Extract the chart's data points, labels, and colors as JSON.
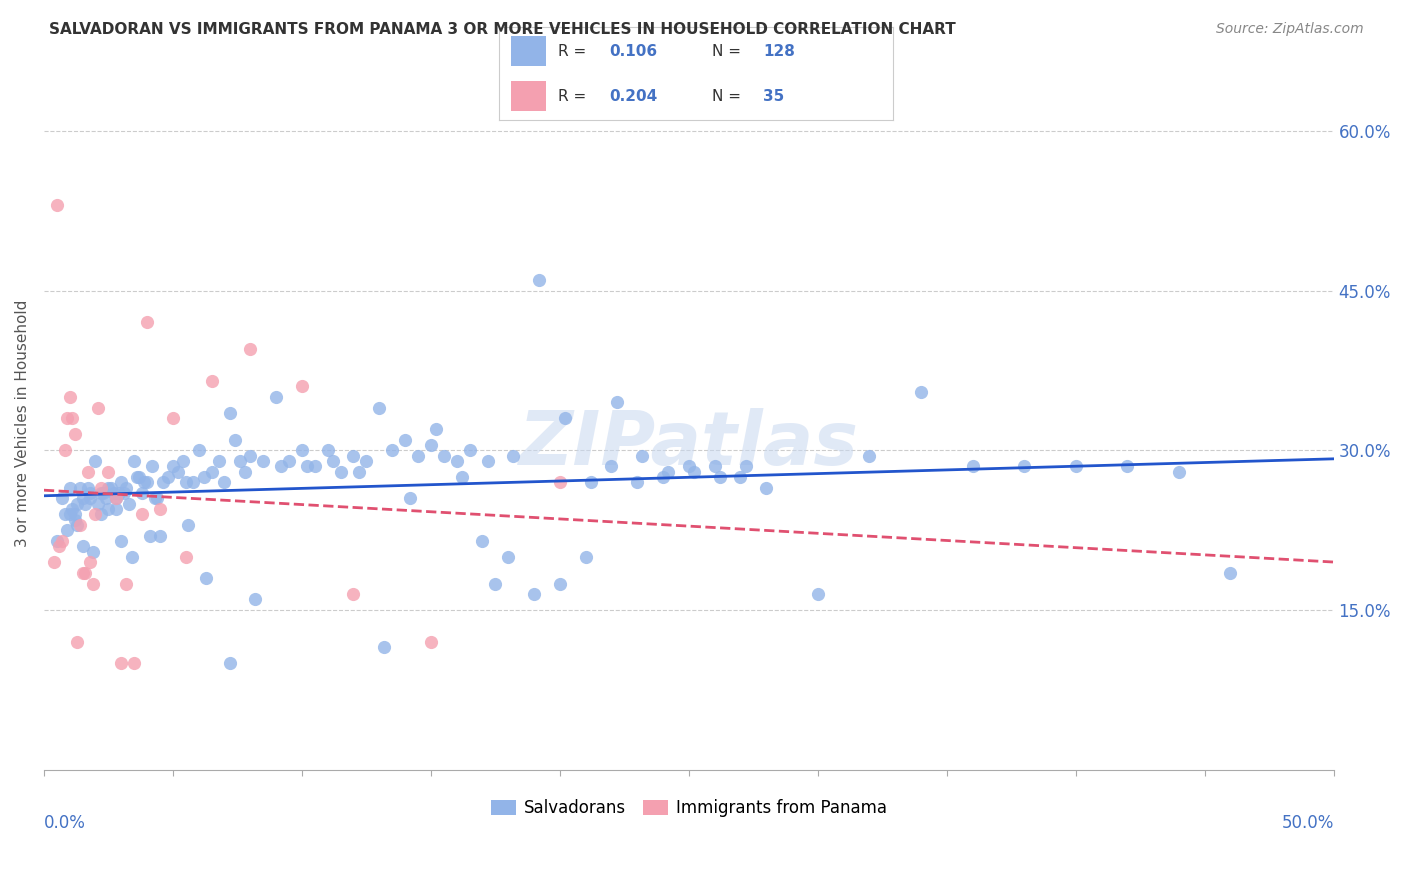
{
  "title": "SALVADORAN VS IMMIGRANTS FROM PANAMA 3 OR MORE VEHICLES IN HOUSEHOLD CORRELATION CHART",
  "source": "Source: ZipAtlas.com",
  "ylabel": "3 or more Vehicles in Household",
  "y_ticks": [
    "15.0%",
    "30.0%",
    "45.0%",
    "60.0%"
  ],
  "y_tick_vals": [
    0.15,
    0.3,
    0.45,
    0.6
  ],
  "x_lim": [
    0.0,
    0.5
  ],
  "y_lim": [
    0.0,
    0.65
  ],
  "salvadoran_R": 0.106,
  "salvadoran_N": 128,
  "panama_R": 0.204,
  "panama_N": 35,
  "salvadoran_color": "#92b4e8",
  "panama_color": "#f4a0b0",
  "salvadoran_line_color": "#2255cc",
  "panama_line_color": "#e05070",
  "watermark": "ZIPatlas",
  "legend_label_1": "Salvadorans",
  "legend_label_2": "Immigrants from Panama",
  "salvadoran_x": [
    0.005,
    0.007,
    0.008,
    0.009,
    0.01,
    0.01,
    0.011,
    0.012,
    0.012,
    0.013,
    0.013,
    0.014,
    0.015,
    0.015,
    0.016,
    0.017,
    0.018,
    0.018,
    0.019,
    0.02,
    0.021,
    0.022,
    0.022,
    0.023,
    0.024,
    0.025,
    0.025,
    0.026,
    0.027,
    0.028,
    0.028,
    0.029,
    0.03,
    0.03,
    0.031,
    0.032,
    0.033,
    0.034,
    0.035,
    0.036,
    0.037,
    0.038,
    0.039,
    0.04,
    0.041,
    0.042,
    0.043,
    0.044,
    0.045,
    0.046,
    0.048,
    0.05,
    0.052,
    0.054,
    0.056,
    0.058,
    0.06,
    0.062,
    0.065,
    0.068,
    0.07,
    0.072,
    0.074,
    0.076,
    0.078,
    0.08,
    0.085,
    0.09,
    0.095,
    0.1,
    0.105,
    0.11,
    0.115,
    0.12,
    0.125,
    0.13,
    0.135,
    0.14,
    0.145,
    0.15,
    0.155,
    0.16,
    0.165,
    0.17,
    0.175,
    0.18,
    0.19,
    0.2,
    0.21,
    0.22,
    0.23,
    0.24,
    0.25,
    0.26,
    0.27,
    0.28,
    0.3,
    0.32,
    0.34,
    0.36,
    0.38,
    0.4,
    0.42,
    0.44,
    0.46,
    0.055,
    0.063,
    0.072,
    0.082,
    0.092,
    0.102,
    0.112,
    0.122,
    0.132,
    0.142,
    0.152,
    0.162,
    0.172,
    0.182,
    0.192,
    0.202,
    0.212,
    0.222,
    0.232,
    0.242,
    0.252,
    0.262,
    0.272
  ],
  "salvadoran_y": [
    0.215,
    0.255,
    0.24,
    0.225,
    0.265,
    0.24,
    0.245,
    0.24,
    0.235,
    0.25,
    0.23,
    0.265,
    0.255,
    0.21,
    0.25,
    0.265,
    0.26,
    0.255,
    0.205,
    0.29,
    0.25,
    0.26,
    0.24,
    0.26,
    0.255,
    0.265,
    0.245,
    0.265,
    0.26,
    0.255,
    0.245,
    0.26,
    0.215,
    0.27,
    0.26,
    0.265,
    0.25,
    0.2,
    0.29,
    0.275,
    0.275,
    0.26,
    0.27,
    0.27,
    0.22,
    0.285,
    0.255,
    0.255,
    0.22,
    0.27,
    0.275,
    0.285,
    0.28,
    0.29,
    0.23,
    0.27,
    0.3,
    0.275,
    0.28,
    0.29,
    0.27,
    0.335,
    0.31,
    0.29,
    0.28,
    0.295,
    0.29,
    0.35,
    0.29,
    0.3,
    0.285,
    0.3,
    0.28,
    0.295,
    0.29,
    0.34,
    0.3,
    0.31,
    0.295,
    0.305,
    0.295,
    0.29,
    0.3,
    0.215,
    0.175,
    0.2,
    0.165,
    0.175,
    0.2,
    0.285,
    0.27,
    0.275,
    0.285,
    0.285,
    0.275,
    0.265,
    0.165,
    0.295,
    0.355,
    0.285,
    0.285,
    0.285,
    0.285,
    0.28,
    0.185,
    0.27,
    0.18,
    0.1,
    0.16,
    0.285,
    0.285,
    0.29,
    0.28,
    0.115,
    0.255,
    0.32,
    0.275,
    0.29,
    0.295,
    0.46,
    0.33,
    0.27,
    0.345,
    0.295,
    0.28,
    0.28,
    0.275,
    0.285
  ],
  "panama_x": [
    0.004,
    0.005,
    0.006,
    0.007,
    0.008,
    0.009,
    0.01,
    0.011,
    0.012,
    0.013,
    0.014,
    0.015,
    0.016,
    0.017,
    0.018,
    0.019,
    0.02,
    0.021,
    0.022,
    0.025,
    0.028,
    0.03,
    0.032,
    0.035,
    0.038,
    0.04,
    0.045,
    0.05,
    0.055,
    0.065,
    0.08,
    0.1,
    0.12,
    0.15,
    0.2
  ],
  "panama_y": [
    0.195,
    0.53,
    0.21,
    0.215,
    0.3,
    0.33,
    0.35,
    0.33,
    0.315,
    0.12,
    0.23,
    0.185,
    0.185,
    0.28,
    0.195,
    0.175,
    0.24,
    0.34,
    0.265,
    0.28,
    0.255,
    0.1,
    0.175,
    0.1,
    0.24,
    0.42,
    0.245,
    0.33,
    0.2,
    0.365,
    0.395,
    0.36,
    0.165,
    0.12,
    0.27
  ]
}
